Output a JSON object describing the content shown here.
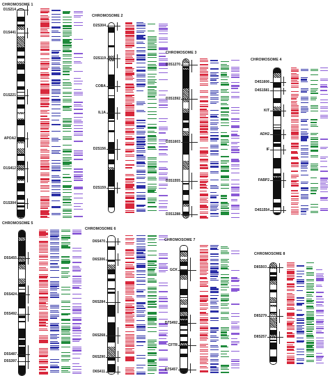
{
  "colors": {
    "red": "#d8283c",
    "blue": "#2b2fa6",
    "green": "#1e8a3a",
    "violet": "#8a5ad6",
    "outline": "#111111"
  },
  "chromosomes": [
    {
      "title": "CHROMOSOME 1",
      "markers": [
        "D1S214",
        "D1S441",
        "D1S221",
        "APOA2",
        "D1S412",
        "D1S304"
      ]
    },
    {
      "title": "CHROMOSOME 2",
      "markers": [
        "D2S304",
        "D2S119",
        "COBA",
        "IL1A",
        "D2S156",
        "D2S159"
      ]
    },
    {
      "title": "CHROMOSOME 3",
      "markers": [
        "D3S1270",
        "D3S1592",
        "D3S1603",
        "D3S1555",
        "D3S1288"
      ]
    },
    {
      "title": "CHROMOSOME 4",
      "markers": [
        "D4S1606",
        "D4S1581",
        "KIT",
        "ADH2",
        "IF",
        "FABP2",
        "D4S1554"
      ]
    },
    {
      "title": "CHROMOSOME 5",
      "markers": [
        "D5S455",
        "D5S424",
        "D5S492",
        "D5S487",
        "D5S397"
      ]
    },
    {
      "title": "CHROMOSOME 6",
      "markers": [
        "D6S470",
        "D6S306",
        "D6S284",
        "D6S268",
        "D6S290",
        "D6S411"
      ]
    },
    {
      "title": "CHROMOSOME 7",
      "markers": [
        "GCK",
        "D7S492",
        "CFTR",
        "D7S457"
      ]
    },
    {
      "title": "CHROMOSOME 8",
      "markers": [
        "D8S503",
        "D8S279",
        "D8S257"
      ]
    }
  ]
}
